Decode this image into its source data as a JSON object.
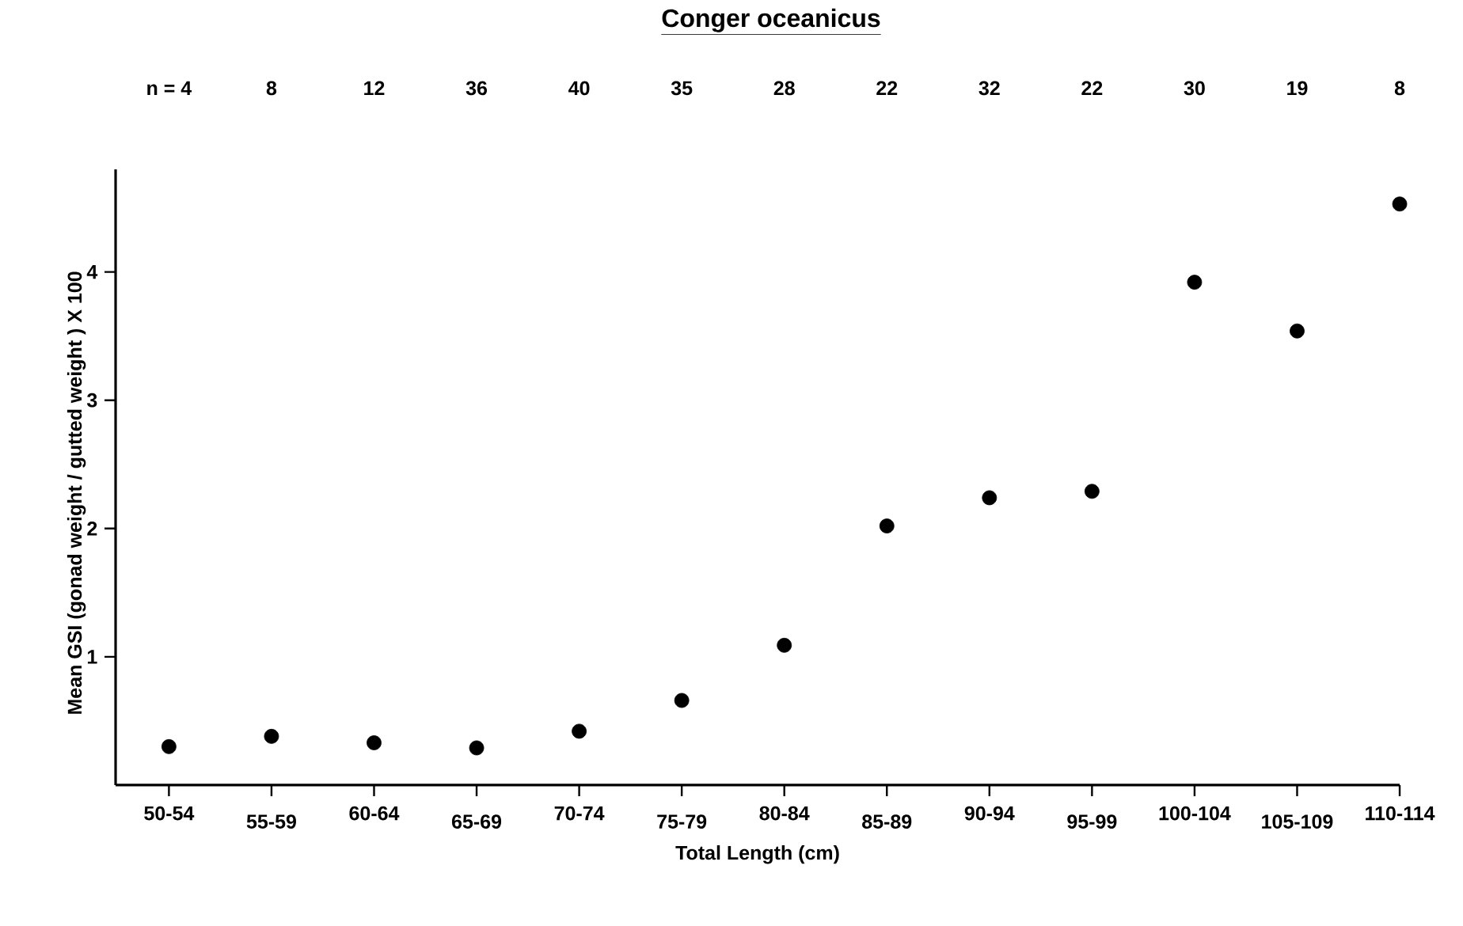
{
  "chart_data": {
    "type": "scatter",
    "title": "Conger oceanicus",
    "xlabel": "Total Length (cm)",
    "ylabel": "Mean GSI (gonad weight / gutted weight ) X 100",
    "categories": [
      "50-54",
      "55-59",
      "60-64",
      "65-69",
      "70-74",
      "75-79",
      "80-84",
      "85-89",
      "90-94",
      "95-99",
      "100-104",
      "105-109",
      "110-114"
    ],
    "values": [
      0.3,
      0.38,
      0.33,
      0.29,
      0.42,
      0.66,
      1.09,
      2.02,
      2.24,
      2.29,
      3.92,
      3.54,
      4.53
    ],
    "color": "#000000",
    "marker": "circle",
    "ylim": [
      0,
      4.8
    ],
    "yticks": [
      1,
      2,
      3,
      4
    ],
    "annotations": [
      "n = 4",
      "8",
      "12",
      "36",
      "40",
      "35",
      "28",
      "22",
      "32",
      "22",
      "30",
      "19",
      "8"
    ]
  }
}
